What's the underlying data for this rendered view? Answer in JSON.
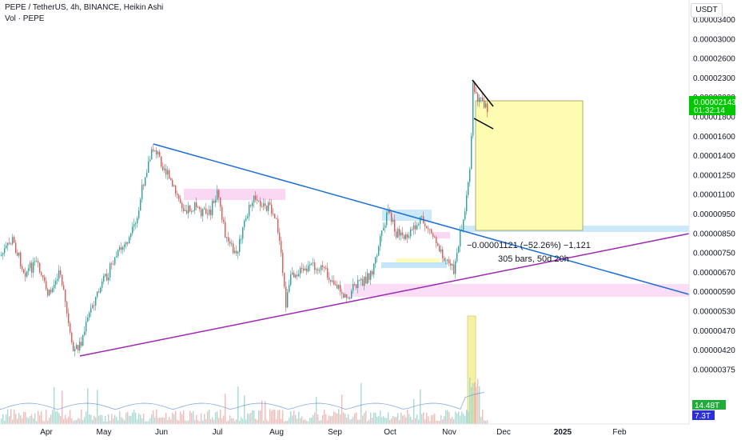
{
  "header": {
    "symbol_line": "PEPE / TetherUS, 4h, BINANCE, Heikin Ashi",
    "volume_line": "Vol · PEPE"
  },
  "price_scale": {
    "unit": "USDT",
    "labels": [
      "0.00003400",
      "0.00003000",
      "0.00002600",
      "0.00002300",
      "0.00002000",
      "0.00001800",
      "0.00001600",
      "0.00001400",
      "0.00001250",
      "0.00001100",
      "0.00000950",
      "0.00000850",
      "0.00000750",
      "0.00000670",
      "0.00000590",
      "0.00000530",
      "0.00000470",
      "0.00000420",
      "0.00000375"
    ],
    "current_price": "0.00002143",
    "countdown": "01:32:14",
    "vol_badge_1": "14.48T",
    "vol_badge_2": "7.3T"
  },
  "time_axis": {
    "labels": [
      "Apr",
      "May",
      "Jun",
      "Jul",
      "Aug",
      "Sep",
      "Oct",
      "Nov",
      "Dec",
      "2025",
      "Feb"
    ]
  },
  "annotation": {
    "measure_line": "−0.00001121 (−52.26%) −1,121",
    "measure_bars": "305 bars, 50d 20h"
  },
  "colors": {
    "up": "#26a69a",
    "down": "#ef5350",
    "trendline_blue": "#1e6ed8",
    "trendline_purple": "#9c27b0",
    "pink_zone": "#f8c8f0",
    "blue_zone": "#bfe3f7",
    "yellow_zone": "#fdfcb0",
    "price_badge": "#00c800",
    "vol_badge_green": "#22ab3b",
    "vol_badge_blue": "#2a2fdc"
  },
  "chart_data": {
    "type": "candlestick",
    "x": [
      "Apr",
      "May",
      "Jun",
      "Jul",
      "Aug",
      "Sep",
      "Oct",
      "Nov"
    ],
    "close": [
      9.6e-06,
      7.6e-06,
      1.42e-05,
      1.2e-05,
      8e-06,
      7.4e-06,
      1.08e-05,
      2.15e-05
    ],
    "volume_series": true,
    "ylim": [
      3.6e-06,
      3.6e-05
    ],
    "scale": "log"
  }
}
